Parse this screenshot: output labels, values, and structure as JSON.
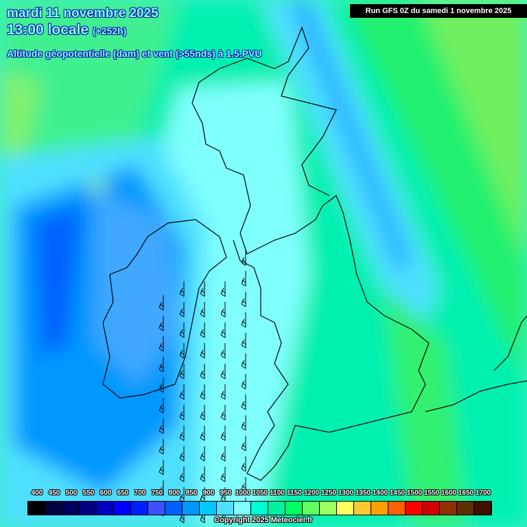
{
  "header": {
    "date": "mardi 11 novembre 2025",
    "time": "13:00 locale",
    "lead": "(+252h)",
    "parameter": "Altitude géopotentielle (dam) et vent (>55nds) à 1.5.PVU",
    "run": "Run GFS 0Z du samedi 1 novembre 2025"
  },
  "legend": {
    "labels": [
      "400",
      "450",
      "500",
      "550",
      "600",
      "650",
      "700",
      "750",
      "800",
      "850",
      "900",
      "950",
      "1000",
      "1050",
      "1100",
      "1150",
      "1200",
      "1250",
      "1300",
      "1350",
      "1400",
      "1450",
      "1500",
      "1550",
      "1600",
      "1650",
      "1700"
    ],
    "colors": [
      "#000000",
      "#000040",
      "#000060",
      "#000080",
      "#0000c0",
      "#0000ff",
      "#0020ff",
      "#4050ff",
      "#0060ff",
      "#0098ff",
      "#00c8ff",
      "#50e0ff",
      "#80ffff",
      "#00ffd0",
      "#00f0a0",
      "#00ff60",
      "#60ff60",
      "#a0ff60",
      "#ffff60",
      "#ffc830",
      "#ffa000",
      "#ff6000",
      "#ff0000",
      "#d00000",
      "#903000",
      "#603000",
      "#401000"
    ]
  },
  "copyright": "Copyright 2025 Meteociel.fr"
}
